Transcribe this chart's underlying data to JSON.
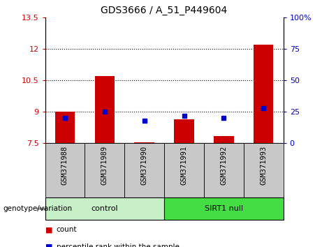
{
  "title": "GDS3666 / A_51_P449604",
  "samples": [
    "GSM371988",
    "GSM371989",
    "GSM371990",
    "GSM371991",
    "GSM371992",
    "GSM371993"
  ],
  "red_values": [
    9.0,
    10.7,
    7.55,
    8.65,
    7.85,
    12.2
  ],
  "blue_values_right": [
    20,
    25,
    18,
    22,
    20,
    28
  ],
  "ylim_left": [
    7.5,
    13.5
  ],
  "ylim_right": [
    0,
    100
  ],
  "yticks_left": [
    7.5,
    9.0,
    10.5,
    12.0,
    13.5
  ],
  "yticks_right": [
    0,
    25,
    50,
    75,
    100
  ],
  "ytick_labels_left": [
    "7.5",
    "9",
    "10.5",
    "12",
    "13.5"
  ],
  "ytick_labels_right": [
    "0",
    "25",
    "50",
    "75",
    "100%"
  ],
  "hlines": [
    9.0,
    10.5,
    12.0
  ],
  "bar_bottom": 7.5,
  "red_color": "#cc0000",
  "blue_color": "#0000cc",
  "bar_width": 0.5,
  "group_label": "genotype/variation",
  "control_label": "control",
  "sirt1_label": "SIRT1 null",
  "bg_xtick": "#c8c8c8",
  "bg_group_control": "#c8f0c8",
  "bg_group_sirt1": "#44dd44",
  "legend_count": "count",
  "legend_pct": "percentile rank within the sample"
}
